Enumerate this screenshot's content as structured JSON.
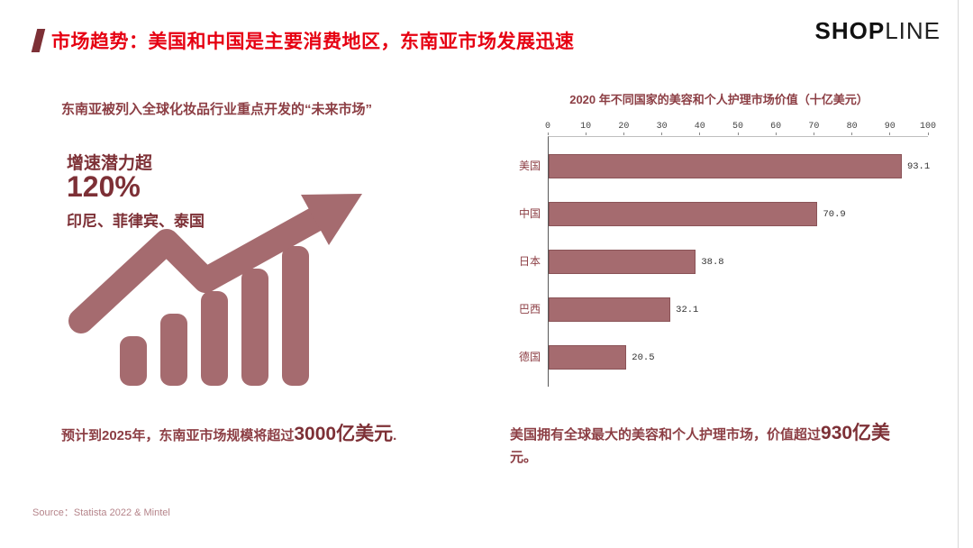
{
  "header": {
    "title": "市场趋势：美国和中国是主要消费地区，东南亚市场发展迅速",
    "logo_bold": "SHOP",
    "logo_light": "LINE"
  },
  "left_panel": {
    "subtitle": "东南亚被列入全球化妆品行业重点开发的“未来市场”",
    "growth_label": "增速潜力超",
    "growth_value": "120%",
    "countries": "印尼、菲律宾、泰国",
    "note_prefix": "预计到2025年，东南亚市场规模将超过",
    "note_highlight": "3000亿美元",
    "note_suffix": "."
  },
  "right_panel": {
    "note_prefix": "美国拥有全球最大的美容和个人护理市场，价值超过",
    "note_highlight": "930亿美",
    "note_suffix": "元。"
  },
  "footer": {
    "source": "Source：Statista 2022 & Mintel"
  },
  "chart_data": {
    "type": "bar",
    "orientation": "horizontal",
    "title": "2020 年不同国家的美容和个人护理市场价值（十亿美元）",
    "categories": [
      "美国",
      "中国",
      "日本",
      "巴西",
      "德国"
    ],
    "values": [
      93.1,
      70.9,
      38.8,
      32.1,
      20.5
    ],
    "xlim": [
      0,
      100
    ],
    "xticks": [
      0,
      10,
      20,
      30,
      40,
      50,
      60,
      70,
      80,
      90,
      100
    ],
    "grid": false,
    "legend": false
  },
  "icons": {
    "trend_arrow": "upward-trend-arrow-icon"
  },
  "colors": {
    "title_red": "#e60012",
    "dark_red": "#8c3e44",
    "maroon": "#7d3036",
    "bar_fill": "#a56b6f",
    "bar_border": "#8a5357",
    "source_text": "#b5848a"
  }
}
